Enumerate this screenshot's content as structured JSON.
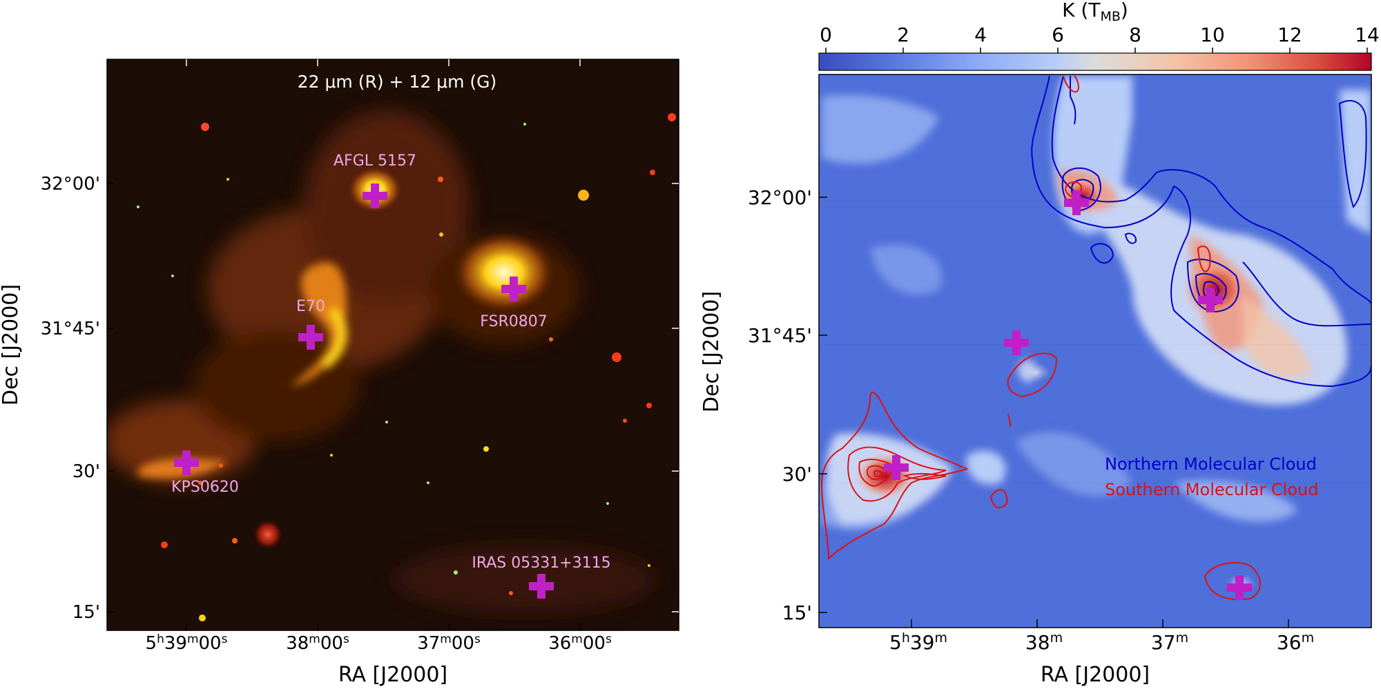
{
  "left_panel": {
    "title": "22 μm (R) + 12 μm (G)",
    "xlabel": "RA [J2000]",
    "ylabel": "Dec [J2000]",
    "x_ticks": [
      {
        "text": "5h39m00s"
      },
      {
        "text": "38m00s"
      },
      {
        "text": "37m00s"
      },
      {
        "text": "36m00s"
      }
    ],
    "y_ticks": [
      "32°00'",
      "31°45'",
      "30'",
      "15'"
    ],
    "sources": [
      {
        "name": "AFGL 5157"
      },
      {
        "name": "E70"
      },
      {
        "name": "FSR0807"
      },
      {
        "name": "KPS0620"
      },
      {
        "name": "IRAS 05331+3115"
      }
    ]
  },
  "right_panel": {
    "colorbar_label": "K (TMB)",
    "colorbar_ticks": [
      "0",
      "2",
      "4",
      "6",
      "8",
      "10",
      "12",
      "14"
    ],
    "colorbar_range": [
      0,
      14
    ],
    "xlabel": "RA [J2000]",
    "ylabel": "Dec [J2000]",
    "x_ticks": [
      "5h39m",
      "38m",
      "37m",
      "36m"
    ],
    "y_ticks": [
      "32°00'",
      "31°45'",
      "30'",
      "15'"
    ],
    "legend": [
      {
        "label": "Northern Molecular Cloud",
        "color": "#0000cc"
      },
      {
        "label": "Southern Molecular Cloud",
        "color": "#dd1111"
      }
    ]
  },
  "colors": {
    "marker": "#c020c8",
    "source_label": "#f0a8e8",
    "colormap_low": "#3a4cc0",
    "colormap_mid": "#dddcdc",
    "colormap_high": "#b40426"
  }
}
